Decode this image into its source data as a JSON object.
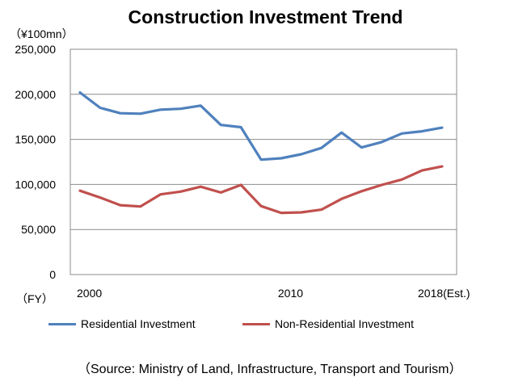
{
  "chart_data": {
    "type": "line",
    "title": "Construction Investment Trend",
    "unit_label": "（¥100mn）",
    "x_prefix_label": "（FY）",
    "x": [
      2000,
      2001,
      2002,
      2003,
      2004,
      2005,
      2006,
      2007,
      2008,
      2009,
      2010,
      2011,
      2012,
      2013,
      2014,
      2015,
      2016,
      2017,
      2018
    ],
    "x_tick_labels": [
      {
        "x": 2000,
        "label": "2000"
      },
      {
        "x": 2010,
        "label": "2010"
      },
      {
        "x": 2018,
        "label": "2018(Est.)"
      }
    ],
    "ylim": [
      0,
      250000
    ],
    "y_ticks": [
      0,
      50000,
      100000,
      150000,
      200000,
      250000
    ],
    "y_tick_labels": [
      "0",
      "50,000",
      "100,000",
      "150,000",
      "200,000",
      "250,000"
    ],
    "grid": true,
    "legend_position": "bottom",
    "series": [
      {
        "name": "Residential Investment",
        "color": "#4f81bd",
        "values": [
          202000,
          185000,
          179000,
          178500,
          183000,
          184000,
          187500,
          166000,
          163500,
          127500,
          129000,
          133500,
          140500,
          157500,
          141000,
          147000,
          156500,
          159000,
          163000
        ]
      },
      {
        "name": "Non-Residential Investment",
        "color": "#c0504d",
        "values": [
          93000,
          85500,
          77000,
          75500,
          89000,
          92000,
          97500,
          91000,
          99500,
          76000,
          68500,
          69000,
          72000,
          84000,
          92500,
          99500,
          105500,
          115500,
          120000
        ]
      }
    ]
  },
  "legend": {
    "residential": "Residential Investment",
    "non_residential": "Non-Residential Investment"
  },
  "source": "（Source:  Ministry of Land, Infrastructure, Transport and Tourism）"
}
